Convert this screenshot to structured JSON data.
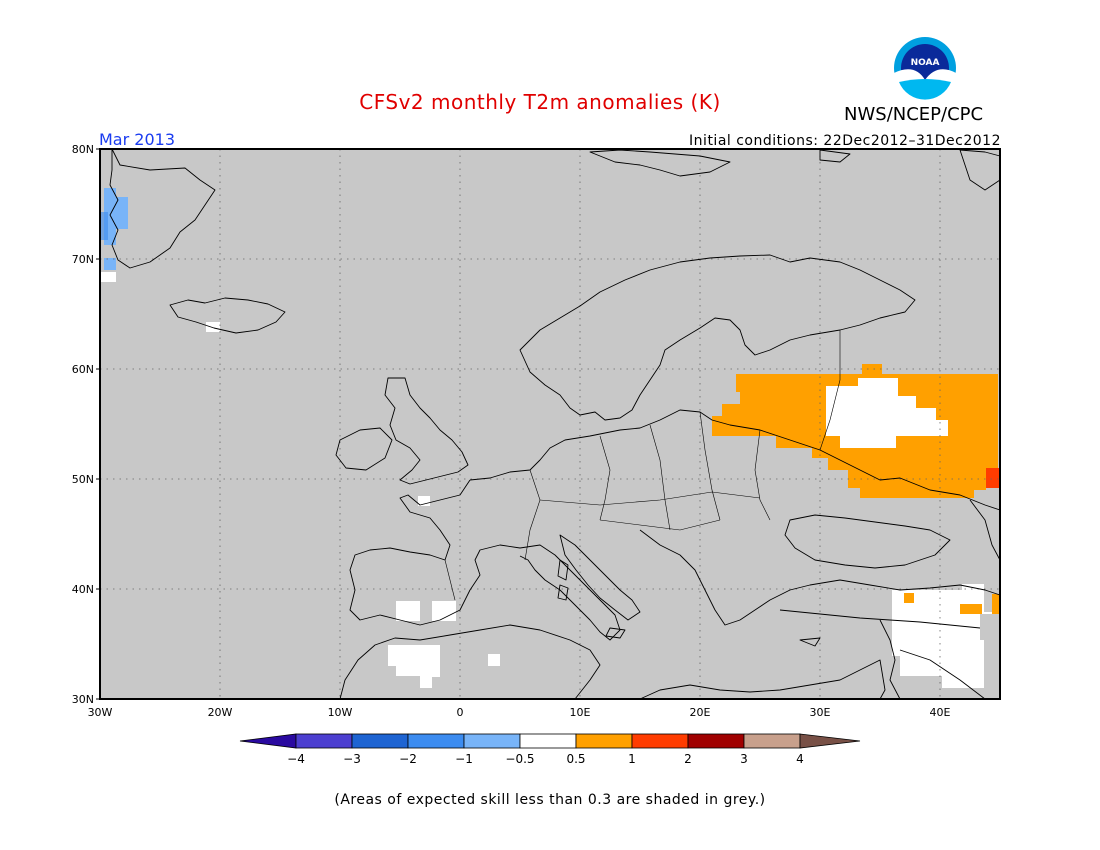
{
  "header": {
    "title": "CFSv2 monthly T2m anomalies (K)",
    "agency": "NWS/NCEP/CPC",
    "logo_text": "NOAA",
    "valid_period": "Mar 2013",
    "initial_conditions": "Initial conditions: 22Dec2012–31Dec2012"
  },
  "map": {
    "lon_range": [
      -30,
      45
    ],
    "lat_range": [
      30,
      80
    ],
    "background_color": "#c8c8c8",
    "lat_ticks": [
      "30N",
      "40N",
      "50N",
      "60N",
      "70N",
      "80N"
    ],
    "lon_ticks": [
      "30W",
      "20W",
      "10W",
      "0",
      "10E",
      "20E",
      "30E",
      "40E"
    ],
    "gridlines": true
  },
  "colorbar": {
    "labels": [
      "−4",
      "−3",
      "−2",
      "−1",
      "−0.5",
      "0.5",
      "1",
      "2",
      "3",
      "4"
    ],
    "colors": [
      "#2a0aa0",
      "#4c3fd0",
      "#1e64d2",
      "#3c8cf0",
      "#78b4f8",
      "#ffffff",
      "#ffa000",
      "#ff3c00",
      "#a00000",
      "#c8a08c",
      "#785046"
    ]
  },
  "footnote": "(Areas of expected skill less than 0.3 are shaded in grey.)"
}
